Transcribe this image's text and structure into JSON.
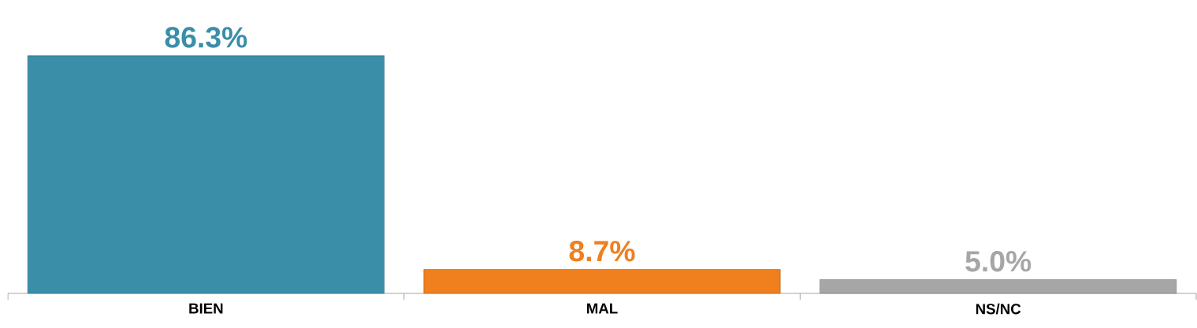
{
  "chart_data": {
    "type": "bar",
    "categories": [
      "BIEN",
      "MAL",
      "NS/NC"
    ],
    "values": [
      86.3,
      8.7,
      5.0
    ],
    "colors": [
      "#3a8ea8",
      "#f07f1e",
      "#a6a6a6"
    ],
    "data_labels": true,
    "value_labels": [
      "86.3%",
      "8.7%",
      "5.0%"
    ]
  }
}
